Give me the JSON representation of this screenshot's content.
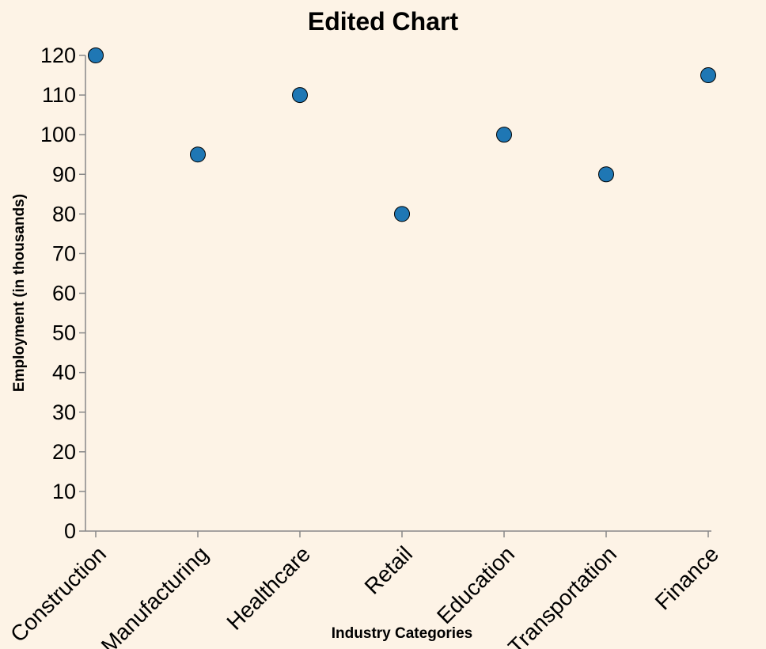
{
  "colors": {
    "background": "#fdf3e6",
    "point_fill": "#1f77b4",
    "point_stroke": "#000000",
    "axis": "#888888"
  },
  "chart_data": {
    "type": "scatter",
    "title": "Edited Chart",
    "xlabel": "Industry Categories",
    "ylabel": "Employment (in thousands)",
    "categories": [
      "Construction",
      "Manufacturing",
      "Healthcare",
      "Retail",
      "Education",
      "Transportation",
      "Finance"
    ],
    "values": [
      120,
      95,
      110,
      80,
      100,
      90,
      115
    ],
    "ylim": [
      0,
      120
    ],
    "yticks": [
      0,
      10,
      20,
      30,
      40,
      50,
      60,
      70,
      80,
      90,
      100,
      110,
      120
    ],
    "grid": false,
    "legend": "none"
  }
}
